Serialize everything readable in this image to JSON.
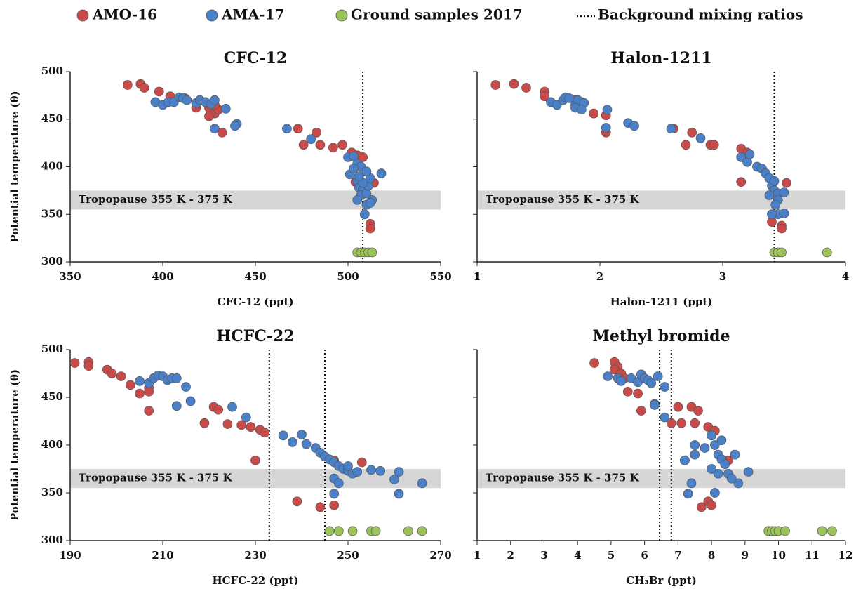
{
  "legend": [
    {
      "label": "AMO-16",
      "color": "#c94a48",
      "marker": "circle"
    },
    {
      "label": "AMA-17",
      "color": "#4a80c8",
      "marker": "circle"
    },
    {
      "label": "Ground samples 2017",
      "color": "#9cc35a",
      "marker": "circle"
    },
    {
      "label": "Background mixing ratios",
      "color": "#111111",
      "marker": "dotted-line"
    }
  ],
  "chart_data": [
    {
      "type": "scatter",
      "title": "CFC-12",
      "xlabel": "CFC-12 (ppt)",
      "ylabel": "Potential temperature (θ)",
      "xlim": [
        350,
        550
      ],
      "xticks": [
        350,
        400,
        450,
        500,
        550
      ],
      "ylim": [
        300,
        500
      ],
      "yticks": [
        300,
        350,
        400,
        450,
        500
      ],
      "ytick_labels": true,
      "band": {
        "label": "Tropopause 355 K - 375 K",
        "range": [
          355,
          375
        ]
      },
      "vlines": [
        508
      ],
      "series": [
        {
          "color": "#c94a48",
          "x": [
            381,
            388,
            390,
            398,
            404,
            412,
            418,
            425,
            428,
            425,
            430,
            428,
            432,
            473,
            476,
            483,
            485,
            492,
            497,
            502,
            505,
            504,
            510,
            512,
            512,
            514,
            508
          ],
          "values": [
            486,
            487,
            483,
            479,
            474,
            472,
            462,
            462,
            456,
            453,
            460,
            465,
            436,
            440,
            423,
            436,
            423,
            420,
            423,
            415,
            412,
            384,
            380,
            340,
            335,
            383,
            410
          ]
        },
        {
          "color": "#4a80c8",
          "x": [
            396,
            400,
            403,
            406,
            409,
            411,
            413,
            418,
            420,
            423,
            426,
            428,
            434,
            440,
            439,
            428,
            467,
            480,
            500,
            503,
            505,
            507,
            501,
            503,
            505,
            506,
            508,
            507,
            510,
            511,
            512,
            513,
            510,
            512,
            518,
            509,
            505,
            508,
            506,
            510
          ],
          "values": [
            468,
            465,
            468,
            468,
            473,
            472,
            470,
            467,
            470,
            468,
            466,
            470,
            461,
            445,
            443,
            440,
            440,
            429,
            410,
            411,
            403,
            400,
            392,
            398,
            385,
            378,
            375,
            370,
            372,
            380,
            388,
            365,
            360,
            362,
            393,
            350,
            365,
            383,
            390,
            395
          ]
        },
        {
          "color": "#9cc35a",
          "x": [
            505,
            507,
            509,
            511,
            513
          ],
          "values": [
            310,
            310,
            310,
            310,
            310
          ]
        }
      ]
    },
    {
      "type": "scatter",
      "title": "Halon-1211",
      "xlabel": "Halon-1211 (ppt)",
      "xlim": [
        1,
        4
      ],
      "xticks": [
        1,
        2,
        3,
        4
      ],
      "ylim": [
        300,
        500
      ],
      "yticks": [
        300,
        350,
        400,
        450,
        500
      ],
      "ytick_labels": false,
      "band": {
        "label": "Tropopause 355 K - 375 K",
        "range": [
          355,
          375
        ]
      },
      "vlines": [
        3.42
      ],
      "series": [
        {
          "color": "#c94a48",
          "x": [
            1.15,
            1.3,
            1.4,
            1.55,
            1.55,
            1.8,
            1.85,
            1.95,
            2.05,
            2.05,
            2.6,
            2.7,
            2.75,
            2.9,
            2.93,
            3.15,
            3.15,
            3.4,
            3.48,
            3.48,
            3.52,
            3.2
          ],
          "values": [
            486,
            487,
            483,
            479,
            474,
            470,
            468,
            456,
            454,
            436,
            440,
            423,
            436,
            423,
            423,
            419,
            384,
            342,
            338,
            335,
            383,
            415
          ]
        },
        {
          "color": "#4a80c8",
          "x": [
            1.6,
            1.65,
            1.7,
            1.72,
            1.75,
            1.8,
            1.82,
            1.87,
            1.8,
            1.85,
            2.06,
            2.05,
            2.23,
            2.28,
            2.58,
            2.82,
            3.15,
            3.2,
            3.22,
            3.28,
            3.32,
            3.35,
            3.38,
            3.4,
            3.42,
            3.45,
            3.38,
            3.45,
            3.5,
            3.43,
            3.45,
            3.5,
            3.4,
            3.42
          ],
          "values": [
            468,
            465,
            470,
            473,
            472,
            465,
            470,
            467,
            462,
            460,
            460,
            441,
            446,
            443,
            440,
            430,
            410,
            405,
            413,
            400,
            398,
            393,
            388,
            380,
            375,
            372,
            370,
            365,
            373,
            360,
            350,
            351,
            350,
            385
          ]
        },
        {
          "color": "#9cc35a",
          "x": [
            3.42,
            3.45,
            3.48,
            3.85
          ],
          "values": [
            310,
            310,
            310,
            310
          ]
        }
      ]
    },
    {
      "type": "scatter",
      "title": "HCFC-22",
      "xlabel": "HCFC-22 (ppt)",
      "ylabel": "Potential temperature (θ)",
      "xlim": [
        190,
        270
      ],
      "xticks": [
        190,
        210,
        230,
        250,
        270
      ],
      "ylim": [
        300,
        500
      ],
      "yticks": [
        300,
        350,
        400,
        450,
        500
      ],
      "ytick_labels": true,
      "band": {
        "label": "Tropopause 355 K - 375 K",
        "range": [
          355,
          375
        ]
      },
      "vlines": [
        233,
        245
      ],
      "series": [
        {
          "color": "#c94a48",
          "x": [
            191,
            194,
            194,
            198,
            199,
            201,
            203,
            205,
            207,
            207,
            207,
            221,
            222,
            219,
            224,
            227,
            229,
            231,
            232,
            230,
            239,
            244,
            247,
            253,
            247
          ],
          "values": [
            486,
            487,
            483,
            479,
            475,
            472,
            463,
            454,
            460,
            456,
            436,
            440,
            437,
            423,
            422,
            421,
            419,
            416,
            413,
            384,
            341,
            335,
            337,
            382,
            384
          ]
        },
        {
          "color": "#4a80c8",
          "x": [
            205,
            207,
            208,
            209,
            210,
            211,
            212,
            213,
            215,
            213,
            216,
            225,
            228,
            236,
            238,
            240,
            241,
            243,
            244,
            245,
            246,
            247,
            248,
            249,
            250,
            251,
            247,
            248,
            252,
            255,
            257,
            261,
            260,
            266,
            261,
            247,
            250
          ],
          "values": [
            467,
            465,
            470,
            473,
            472,
            468,
            470,
            470,
            461,
            441,
            446,
            440,
            429,
            410,
            403,
            411,
            401,
            397,
            392,
            388,
            385,
            382,
            378,
            375,
            373,
            370,
            365,
            360,
            372,
            374,
            373,
            372,
            364,
            360,
            349,
            349,
            378
          ]
        },
        {
          "color": "#9cc35a",
          "x": [
            246,
            248,
            251,
            255,
            256,
            263,
            266
          ],
          "values": [
            310,
            310,
            310,
            310,
            310,
            310,
            310
          ]
        }
      ]
    },
    {
      "type": "scatter",
      "title": "Methyl bromide",
      "xlabel": "CH₃Br (ppt)",
      "xlim": [
        1,
        12
      ],
      "xticks": [
        1,
        2,
        3,
        4,
        5,
        6,
        7,
        8,
        9,
        10,
        11,
        12
      ],
      "ylim": [
        300,
        500
      ],
      "yticks": [
        300,
        350,
        400,
        450,
        500
      ],
      "ytick_labels": false,
      "band": {
        "label": "Tropopause 355 K - 375 K",
        "range": [
          355,
          375
        ]
      },
      "vlines": [
        6.45,
        6.8
      ],
      "series": [
        {
          "color": "#c94a48",
          "x": [
            4.5,
            5.1,
            5.2,
            5.1,
            5.3,
            5.4,
            5.5,
            5.8,
            5.9,
            6.8,
            7.0,
            7.1,
            7.4,
            7.5,
            7.6,
            7.9,
            8.1,
            7.2,
            7.7,
            7.9,
            8.0,
            8.5
          ],
          "values": [
            486,
            487,
            482,
            479,
            475,
            470,
            456,
            454,
            436,
            423,
            440,
            423,
            440,
            423,
            436,
            419,
            415,
            384,
            335,
            341,
            337,
            384
          ]
        },
        {
          "color": "#4a80c8",
          "x": [
            4.9,
            5.2,
            5.3,
            5.6,
            5.8,
            5.9,
            6.0,
            6.1,
            6.2,
            6.4,
            6.3,
            6.3,
            6.6,
            6.6,
            7.2,
            7.5,
            7.5,
            7.8,
            8.0,
            8.1,
            8.2,
            8.3,
            8.0,
            8.4,
            8.5,
            8.7,
            8.8,
            8.6,
            9.1,
            7.4,
            7.3,
            8.1,
            8.3,
            8.2
          ],
          "values": [
            472,
            470,
            467,
            470,
            466,
            474,
            470,
            468,
            465,
            472,
            443,
            442,
            461,
            429,
            384,
            400,
            390,
            397,
            410,
            400,
            390,
            385,
            375,
            380,
            370,
            390,
            360,
            365,
            372,
            360,
            349,
            350,
            405,
            370
          ]
        },
        {
          "color": "#9cc35a",
          "x": [
            9.7,
            9.8,
            9.9,
            10.0,
            10.2,
            11.3,
            11.6
          ],
          "values": [
            310,
            310,
            310,
            310,
            310,
            310,
            310
          ]
        }
      ]
    }
  ]
}
